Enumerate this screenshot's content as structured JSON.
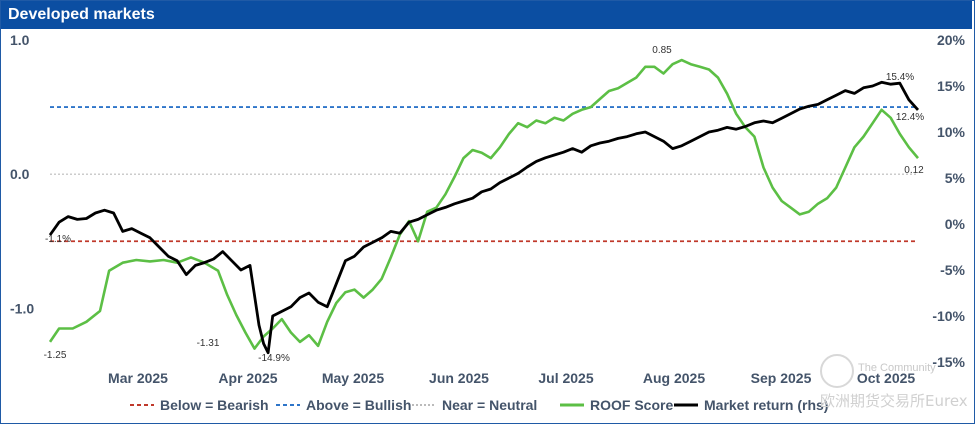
{
  "title": "Developed markets",
  "chart_data": {
    "type": "line",
    "x_labels": [
      "Mar 2025",
      "Apr 2025",
      "May 2025",
      "Jun 2025",
      "Jul 2025",
      "Aug 2025",
      "Sep 2025",
      "Oct 2025"
    ],
    "left_axis": {
      "ylim": [
        -1.4,
        1.0
      ],
      "ticks": [
        "1.0",
        "0.0",
        "-1.0"
      ],
      "tick_values": [
        1.0,
        0.0,
        -1.0
      ]
    },
    "right_axis": {
      "ylim": [
        -15,
        20
      ],
      "ticks": [
        "20%",
        "15%",
        "10%",
        "5%",
        "0%",
        "-5%",
        "-10%",
        "-15%"
      ],
      "tick_values": [
        20,
        15,
        10,
        5,
        0,
        -5,
        -10,
        -15
      ]
    },
    "thresholds": {
      "bearish": -0.5,
      "bullish": 0.5,
      "neutral": 0.0
    },
    "series": [
      {
        "name": "ROOF Score",
        "axis": "left",
        "color": "#5cbf45",
        "points": [
          [
            0,
            -1.25
          ],
          [
            2,
            -1.15
          ],
          [
            5,
            -1.15
          ],
          [
            8,
            -1.1
          ],
          [
            11,
            -1.02
          ],
          [
            13,
            -0.72
          ],
          [
            16,
            -0.66
          ],
          [
            19,
            -0.64
          ],
          [
            22,
            -0.65
          ],
          [
            25,
            -0.64
          ],
          [
            28,
            -0.66
          ],
          [
            31,
            -0.62
          ],
          [
            34,
            -0.66
          ],
          [
            37,
            -0.72
          ],
          [
            39,
            -0.9
          ],
          [
            41,
            -1.05
          ],
          [
            43,
            -1.18
          ],
          [
            45,
            -1.3
          ],
          [
            47,
            -1.21
          ],
          [
            49,
            -1.15
          ],
          [
            51,
            -1.08
          ],
          [
            53,
            -1.18
          ],
          [
            55,
            -1.25
          ],
          [
            57,
            -1.2
          ],
          [
            59,
            -1.28
          ],
          [
            61,
            -1.1
          ],
          [
            63,
            -0.96
          ],
          [
            65,
            -0.88
          ],
          [
            67,
            -0.86
          ],
          [
            69,
            -0.92
          ],
          [
            71,
            -0.86
          ],
          [
            73,
            -0.78
          ],
          [
            75,
            -0.62
          ],
          [
            77,
            -0.45
          ],
          [
            79,
            -0.35
          ],
          [
            81,
            -0.5
          ],
          [
            83,
            -0.28
          ],
          [
            85,
            -0.25
          ],
          [
            87,
            -0.15
          ],
          [
            89,
            -0.02
          ],
          [
            91,
            0.12
          ],
          [
            93,
            0.18
          ],
          [
            95,
            0.16
          ],
          [
            97,
            0.12
          ],
          [
            99,
            0.2
          ],
          [
            101,
            0.3
          ],
          [
            103,
            0.38
          ],
          [
            105,
            0.35
          ],
          [
            107,
            0.4
          ],
          [
            109,
            0.38
          ],
          [
            111,
            0.42
          ],
          [
            113,
            0.4
          ],
          [
            115,
            0.45
          ],
          [
            117,
            0.48
          ],
          [
            119,
            0.5
          ],
          [
            121,
            0.56
          ],
          [
            123,
            0.62
          ],
          [
            125,
            0.64
          ],
          [
            127,
            0.68
          ],
          [
            129,
            0.72
          ],
          [
            131,
            0.8
          ],
          [
            133,
            0.8
          ],
          [
            135,
            0.75
          ],
          [
            137,
            0.82
          ],
          [
            139,
            0.85
          ],
          [
            141,
            0.82
          ],
          [
            143,
            0.8
          ],
          [
            145,
            0.78
          ],
          [
            147,
            0.72
          ],
          [
            149,
            0.6
          ],
          [
            151,
            0.45
          ],
          [
            153,
            0.35
          ],
          [
            155,
            0.28
          ],
          [
            157,
            0.05
          ],
          [
            159,
            -0.1
          ],
          [
            161,
            -0.2
          ],
          [
            163,
            -0.25
          ],
          [
            165,
            -0.3
          ],
          [
            167,
            -0.28
          ],
          [
            169,
            -0.22
          ],
          [
            171,
            -0.18
          ],
          [
            173,
            -0.1
          ],
          [
            175,
            0.05
          ],
          [
            177,
            0.2
          ],
          [
            179,
            0.28
          ],
          [
            181,
            0.38
          ],
          [
            183,
            0.48
          ],
          [
            185,
            0.42
          ],
          [
            187,
            0.3
          ],
          [
            189,
            0.2
          ],
          [
            191,
            0.12
          ]
        ]
      },
      {
        "name": "Market return (rhs)",
        "axis": "right",
        "color": "#000000",
        "points": [
          [
            0,
            -1.2
          ],
          [
            2,
            0.2
          ],
          [
            4,
            0.8
          ],
          [
            6,
            0.5
          ],
          [
            8,
            0.6
          ],
          [
            10,
            1.2
          ],
          [
            12,
            1.5
          ],
          [
            14,
            1.2
          ],
          [
            16,
            -0.8
          ],
          [
            18,
            -0.5
          ],
          [
            20,
            -1.0
          ],
          [
            22,
            -1.5
          ],
          [
            24,
            -2.5
          ],
          [
            26,
            -3.5
          ],
          [
            28,
            -4.0
          ],
          [
            30,
            -5.5
          ],
          [
            32,
            -4.5
          ],
          [
            34,
            -4.2
          ],
          [
            36,
            -3.8
          ],
          [
            38,
            -3.0
          ],
          [
            40,
            -4.0
          ],
          [
            42,
            -5.0
          ],
          [
            44,
            -4.5
          ],
          [
            46,
            -11.0
          ],
          [
            47,
            -13.0
          ],
          [
            48,
            -14.0
          ],
          [
            49,
            -10.0
          ],
          [
            51,
            -9.5
          ],
          [
            53,
            -9.0
          ],
          [
            55,
            -8.0
          ],
          [
            57,
            -7.5
          ],
          [
            59,
            -8.5
          ],
          [
            61,
            -9.0
          ],
          [
            63,
            -6.5
          ],
          [
            65,
            -4.0
          ],
          [
            67,
            -3.5
          ],
          [
            69,
            -2.5
          ],
          [
            71,
            -2.0
          ],
          [
            73,
            -1.5
          ],
          [
            75,
            -0.8
          ],
          [
            77,
            -1.0
          ],
          [
            79,
            0.2
          ],
          [
            81,
            0.5
          ],
          [
            83,
            1.0
          ],
          [
            85,
            1.5
          ],
          [
            87,
            1.8
          ],
          [
            89,
            2.2
          ],
          [
            91,
            2.5
          ],
          [
            93,
            2.8
          ],
          [
            95,
            3.5
          ],
          [
            97,
            3.8
          ],
          [
            99,
            4.5
          ],
          [
            101,
            5.0
          ],
          [
            103,
            5.5
          ],
          [
            105,
            6.2
          ],
          [
            107,
            6.8
          ],
          [
            109,
            7.2
          ],
          [
            111,
            7.5
          ],
          [
            113,
            7.8
          ],
          [
            115,
            8.2
          ],
          [
            117,
            7.8
          ],
          [
            119,
            8.5
          ],
          [
            121,
            8.8
          ],
          [
            123,
            9.0
          ],
          [
            125,
            9.3
          ],
          [
            127,
            9.5
          ],
          [
            129,
            9.8
          ],
          [
            131,
            10.0
          ],
          [
            133,
            9.5
          ],
          [
            135,
            9.0
          ],
          [
            137,
            8.2
          ],
          [
            139,
            8.5
          ],
          [
            141,
            9.0
          ],
          [
            143,
            9.5
          ],
          [
            145,
            10.0
          ],
          [
            147,
            10.2
          ],
          [
            149,
            10.5
          ],
          [
            151,
            10.3
          ],
          [
            153,
            10.6
          ],
          [
            155,
            11.0
          ],
          [
            157,
            11.2
          ],
          [
            159,
            11.0
          ],
          [
            161,
            11.5
          ],
          [
            163,
            12.0
          ],
          [
            165,
            12.5
          ],
          [
            167,
            12.8
          ],
          [
            169,
            13.0
          ],
          [
            171,
            13.5
          ],
          [
            173,
            14.0
          ],
          [
            175,
            14.5
          ],
          [
            177,
            14.2
          ],
          [
            179,
            14.8
          ],
          [
            181,
            15.0
          ],
          [
            183,
            15.4
          ],
          [
            185,
            15.2
          ],
          [
            187,
            15.3
          ],
          [
            189,
            13.5
          ],
          [
            191,
            12.4
          ]
        ]
      }
    ],
    "annotations": [
      {
        "text": "0.85",
        "series": "ROOF Score"
      },
      {
        "text": "-1.25",
        "series": "ROOF Score"
      },
      {
        "text": "-1.31",
        "series": "ROOF Score"
      },
      {
        "text": "0.12",
        "series": "ROOF Score"
      },
      {
        "text": "-1.1%",
        "series": "Market return (rhs)"
      },
      {
        "text": "-14.9%",
        "series": "Market return (rhs)"
      },
      {
        "text": "15.4%",
        "series": "Market return (rhs)"
      },
      {
        "text": "12.4%",
        "series": "Market return (rhs)"
      }
    ],
    "legend": [
      {
        "label": "Below = Bearish",
        "color": "#c0392b",
        "style": "dashed"
      },
      {
        "label": "Above = Bullish",
        "color": "#2e75c9",
        "style": "dashed"
      },
      {
        "label": "Near = Neutral",
        "color": "#bbbbbb",
        "style": "dotted"
      },
      {
        "label": "ROOF Score",
        "color": "#5cbf45",
        "style": "solid"
      },
      {
        "label": "Market return (rhs)",
        "color": "#000000",
        "style": "solid"
      }
    ]
  },
  "watermark": {
    "brand": "The Community",
    "cn": "欧洲期货交易所Eurex"
  }
}
